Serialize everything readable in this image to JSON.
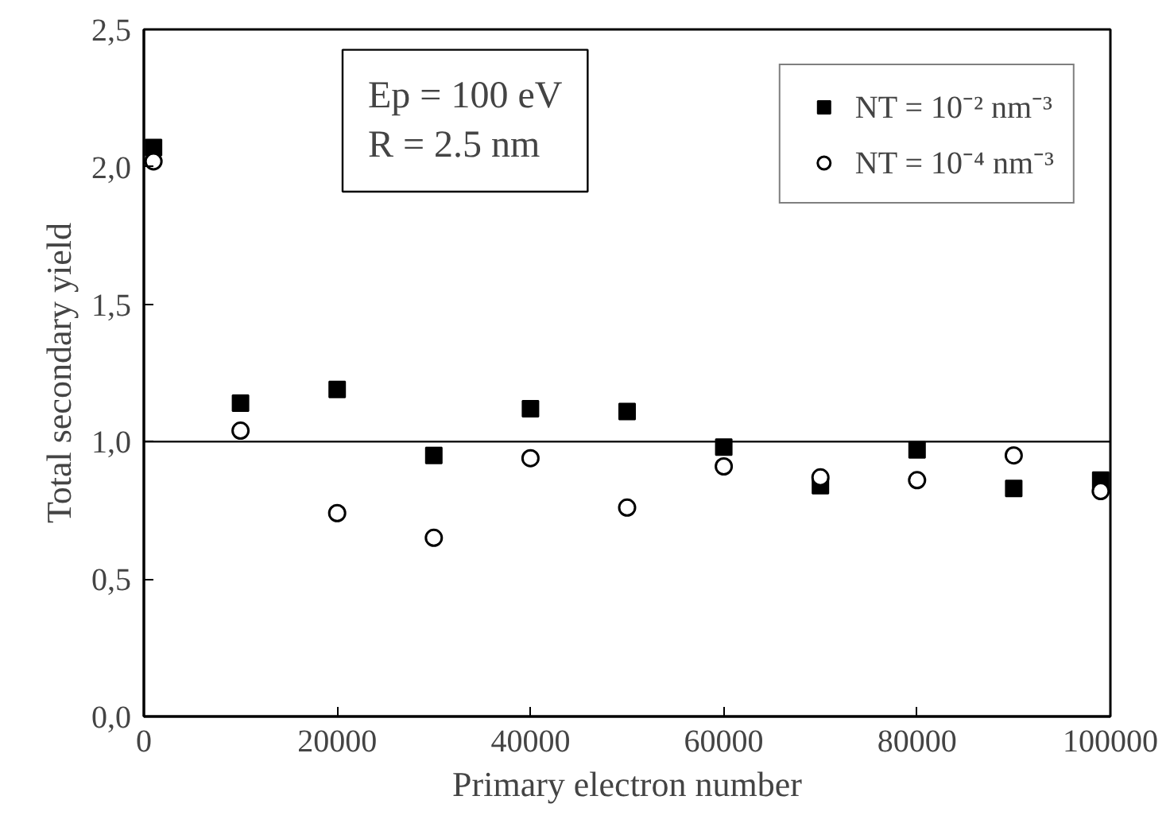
{
  "chart_data": {
    "type": "scatter",
    "xlabel": "Primary electron number",
    "ylabel": "Total secondary yield",
    "x": [
      1000,
      10000,
      20000,
      30000,
      40000,
      50000,
      60000,
      70000,
      80000,
      90000,
      99000
    ],
    "series": [
      {
        "name": "NT = 10⁻² nm⁻³",
        "color": "#000000",
        "marker": "square",
        "values": [
          2.07,
          1.14,
          1.19,
          0.95,
          1.12,
          1.11,
          0.98,
          0.84,
          0.97,
          0.83,
          0.86
        ]
      },
      {
        "name": "NT = 10⁻⁴ nm⁻³",
        "color": "#000000",
        "marker": "circle",
        "values": [
          2.02,
          1.04,
          0.74,
          0.65,
          0.94,
          0.76,
          0.91,
          0.87,
          0.86,
          0.95,
          0.82
        ]
      }
    ],
    "annotations": [
      "Ep = 100 eV",
      "R = 2.5 nm"
    ],
    "ref_lines": [
      {
        "axis": "y",
        "value": 1.0,
        "label": null,
        "color": "#000000"
      }
    ],
    "xlim": [
      0,
      100000
    ],
    "xticks": [
      0,
      20000,
      40000,
      60000,
      80000,
      100000
    ],
    "ylim": [
      0,
      2.5
    ],
    "yticks": [
      {
        "value": 0,
        "label": "0,0"
      },
      {
        "value": 0.5,
        "label": "0,5"
      },
      {
        "value": 1.0,
        "label": "1,0"
      },
      {
        "value": 1.5,
        "label": "1,5"
      },
      {
        "value": 2.0,
        "label": "2,0"
      },
      {
        "value": 2.5,
        "label": "2,5"
      }
    ],
    "legend": "top right",
    "grid": false
  }
}
